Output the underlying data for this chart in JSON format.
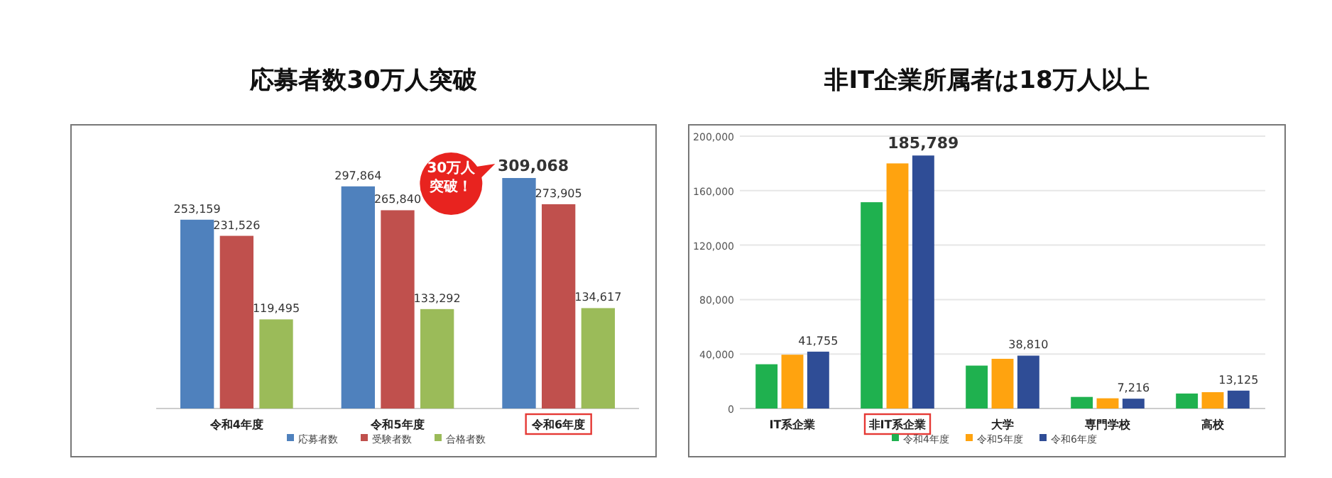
{
  "chart_data": [
    {
      "type": "bar",
      "title": "応募者数30万人突破",
      "categories": [
        "令和4年度",
        "令和5年度",
        "令和6年度"
      ],
      "series": [
        {
          "name": "応募者数",
          "color": "#4f81bd",
          "values": [
            253159,
            297864,
            309068
          ],
          "value_labels": [
            "253,159",
            "297,864",
            "309,068"
          ]
        },
        {
          "name": "受験者数",
          "color": "#c0504d",
          "values": [
            231526,
            265840,
            273905
          ],
          "value_labels": [
            "231,526",
            "265,840",
            "273,905"
          ]
        },
        {
          "name": "合格者数",
          "color": "#9bbb59",
          "values": [
            119495,
            133292,
            134617
          ],
          "value_labels": [
            "119,495",
            "133,292",
            "134,617"
          ]
        }
      ],
      "legend": "bottom",
      "grid": false,
      "tick_labels": "x",
      "annotations": [
        "30万人突破！"
      ]
    },
    {
      "type": "bar",
      "title": "非IT企業所属者は18万人以上",
      "categories": [
        "IT系企業",
        "非IT系企業",
        "大学",
        "専門学校",
        "高校"
      ],
      "series": [
        {
          "name": "令和4年度",
          "color": "#1fb14f",
          "values": [
            32500,
            151500,
            31500,
            8500,
            11000
          ],
          "value_labels": [
            null,
            null,
            null,
            null,
            null
          ]
        },
        {
          "name": "令和5年度",
          "color": "#ffa30f",
          "values": [
            39500,
            180000,
            36500,
            7500,
            12000
          ],
          "value_labels": [
            null,
            null,
            null,
            null,
            null
          ]
        },
        {
          "name": "令和6年度",
          "color": "#2f4d96",
          "values": [
            41755,
            185789,
            38810,
            7216,
            13125
          ],
          "value_labels": [
            "41,755",
            "185,789",
            "38,810",
            "7,216",
            "13,125"
          ]
        }
      ],
      "ylim": [
        0,
        200000
      ],
      "yticks": [
        0,
        {
          "value": 40000,
          "label": "40,000"
        },
        {
          "value": 80000,
          "label": "80,000"
        },
        {
          "value": 120000,
          "label": "120,000"
        },
        {
          "value": 160000,
          "label": "160,000"
        },
        {
          "value": 200000,
          "label": "200,000"
        }
      ],
      "grid": "y",
      "legend": "bottom"
    }
  ]
}
